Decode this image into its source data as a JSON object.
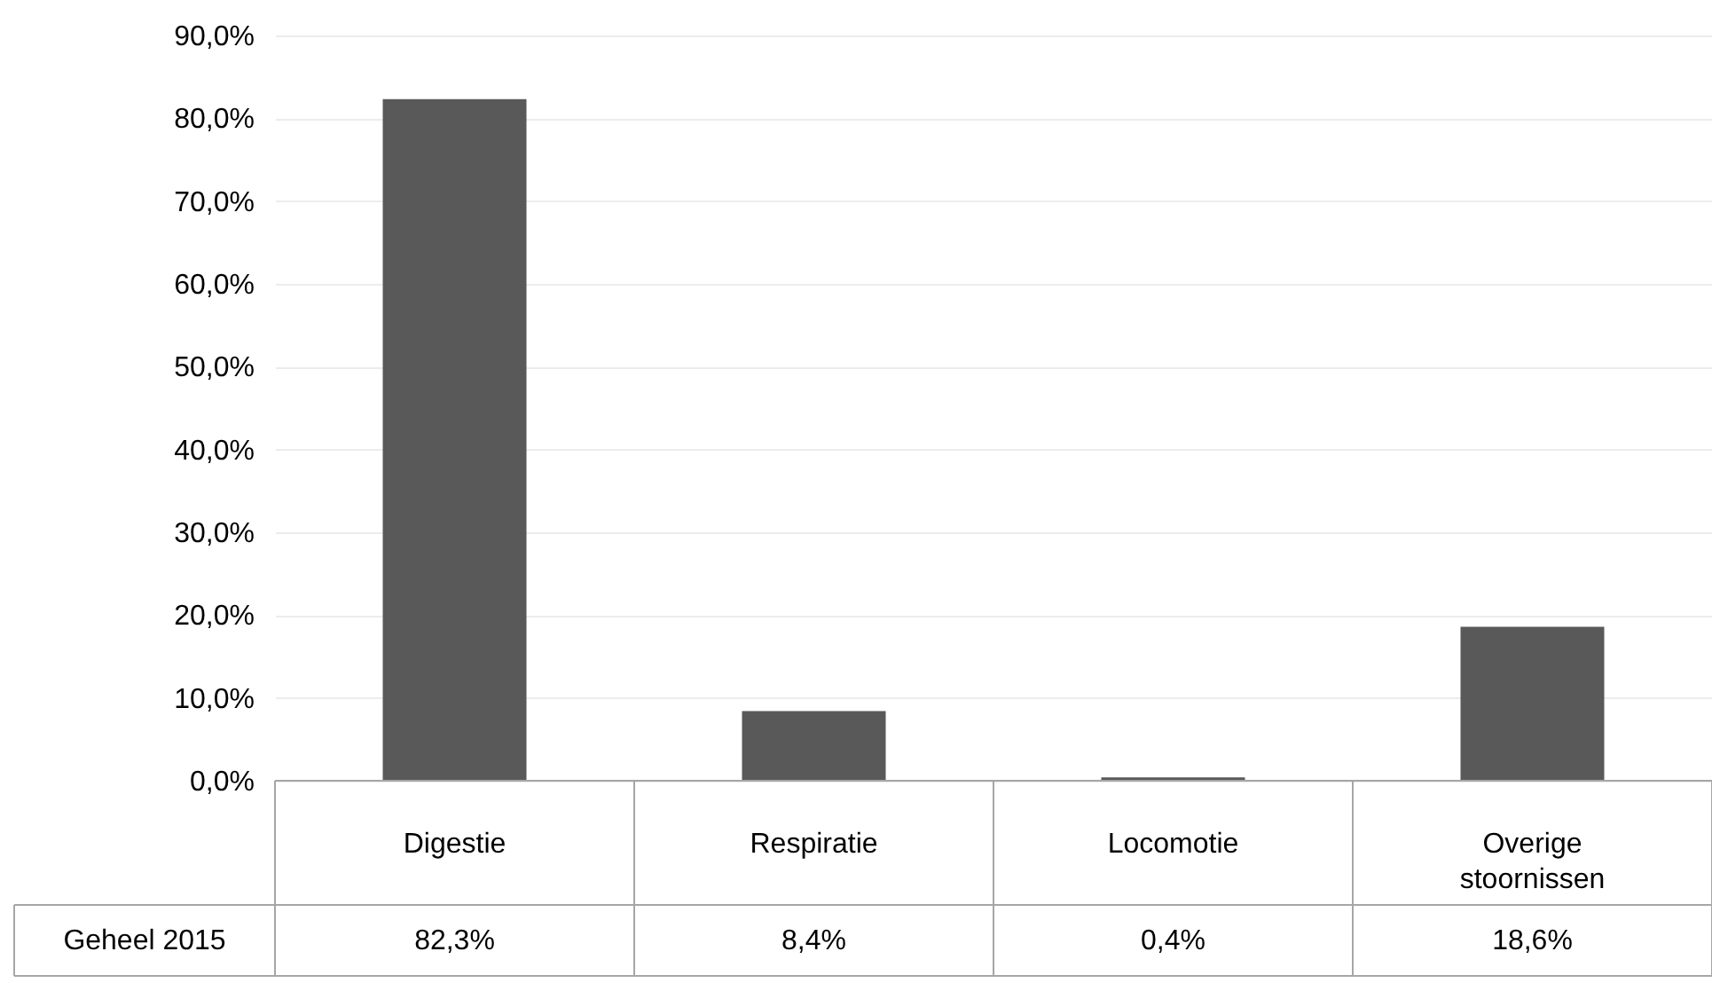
{
  "chart_data": {
    "type": "bar",
    "categories": [
      "Digestie",
      "Respiratie",
      "Locomotie",
      "Overige stoornissen"
    ],
    "series": [
      {
        "name": "Geheel 2015",
        "color": "#595959",
        "values": [
          82.3,
          8.4,
          0.4,
          18.6
        ],
        "value_labels": [
          "82,3%",
          "8,4%",
          "0,4%",
          "18,6%"
        ]
      }
    ],
    "ylim": [
      0,
      90
    ],
    "yticks": [
      {
        "value": 0,
        "label": "0,0%"
      },
      {
        "value": 10,
        "label": "10,0%"
      },
      {
        "value": 20,
        "label": "20,0%"
      },
      {
        "value": 30,
        "label": "30,0%"
      },
      {
        "value": 40,
        "label": "40,0%"
      },
      {
        "value": 50,
        "label": "50,0%"
      },
      {
        "value": 60,
        "label": "60,0%"
      },
      {
        "value": 70,
        "label": "70,0%"
      },
      {
        "value": 80,
        "label": "80,0%"
      },
      {
        "value": 90,
        "label": "90,0%"
      }
    ],
    "grid": "y"
  }
}
